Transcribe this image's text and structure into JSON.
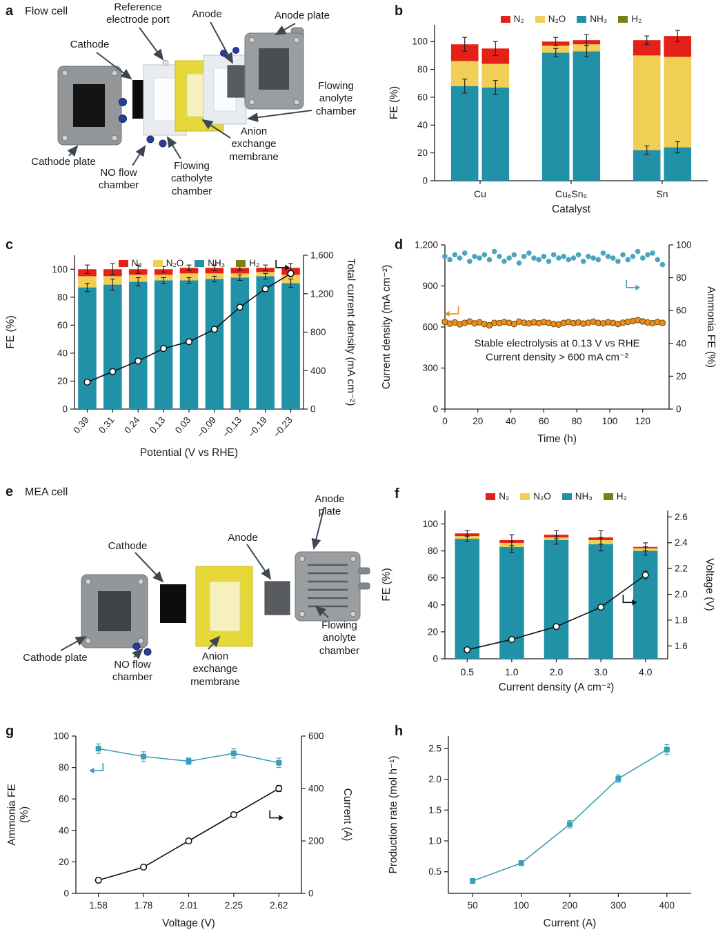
{
  "colors": {
    "n2": "#e32119",
    "n2o": "#f0cf54",
    "nh3": "#2191a8",
    "h2": "#7c7f15",
    "teal_marker": "#4aa5bd",
    "teal_line": "#3a9fb6",
    "orange": "#ef8c1f",
    "axis": "#1a1a1a",
    "arrow": "#3d4754"
  },
  "panel_a": {
    "letter": "a",
    "title": "Flow cell",
    "labels": {
      "cathode": "Cathode",
      "ref_port": "Reference\nelectrode port",
      "anode": "Anode",
      "anode_plate": "Anode plate",
      "flowing_anolyte": "Flowing\nanolyte\nchamber",
      "aem": "Anion\nexchange\nmembrane",
      "cathode_plate": "Cathode plate",
      "no_flow": "NO flow\nchamber",
      "flowing_catholyte": "Flowing\ncatholyte\nchamber"
    }
  },
  "panel_b": {
    "letter": "b"
  },
  "panel_c": {
    "letter": "c"
  },
  "panel_d": {
    "letter": "d"
  },
  "panel_e": {
    "letter": "e",
    "title": "MEA cell",
    "labels": {
      "cathode": "Cathode",
      "anode": "Anode",
      "anode_plate": "Anode plate",
      "flowing_anolyte": "Flowing\nanolyte\nchamber",
      "aem": "Anion\nexchange\nmembrane",
      "cathode_plate": "Cathode plate",
      "no_flow": "NO flow\nchamber"
    }
  },
  "panel_f": {
    "letter": "f"
  },
  "panel_g": {
    "letter": "g"
  },
  "panel_h": {
    "letter": "h"
  },
  "chart_data": [
    {
      "panel": "b",
      "type": "stacked_bar",
      "ylabel": "FE (%)",
      "ylim": [
        0,
        112
      ],
      "yticks": [
        0,
        20,
        40,
        60,
        80,
        100
      ],
      "xlabel": "Catalyst",
      "legend": [
        {
          "key": "N2",
          "label": "N₂",
          "color": "#e32119"
        },
        {
          "key": "N2O",
          "label": "N₂O",
          "color": "#f0cf54"
        },
        {
          "key": "NH3",
          "label": "NH₃",
          "color": "#2191a8"
        },
        {
          "key": "H2",
          "label": "H₂",
          "color": "#7c7f15"
        }
      ],
      "stack_order": [
        "NH3",
        "N2O",
        "N2",
        "H2"
      ],
      "groups": [
        {
          "label": "Cu",
          "bars": [
            {
              "segs": {
                "NH3": 68,
                "N2O": 18,
                "N2": 12,
                "H2": 0
              },
              "err": 5
            },
            {
              "segs": {
                "NH3": 67,
                "N2O": 17,
                "N2": 11,
                "H2": 0
              },
              "err": 5
            }
          ]
        },
        {
          "label": "Cu₆Sn₅",
          "bars": [
            {
              "segs": {
                "NH3": 92,
                "N2O": 5,
                "N2": 3,
                "H2": 0
              },
              "err": 3
            },
            {
              "segs": {
                "NH3": 93,
                "N2O": 5,
                "N2": 3,
                "H2": 0
              },
              "err": 4
            }
          ]
        },
        {
          "label": "Sn",
          "bars": [
            {
              "segs": {
                "NH3": 22,
                "N2O": 68,
                "N2": 11,
                "H2": 0
              },
              "err": 3
            },
            {
              "segs": {
                "NH3": 24,
                "N2O": 65,
                "N2": 15,
                "H2": 0
              },
              "err": 4
            }
          ]
        }
      ]
    },
    {
      "panel": "c",
      "type": "stacked_bar",
      "ylabel": "FE (%)",
      "ylim": [
        0,
        110
      ],
      "yticks": [
        0,
        20,
        40,
        60,
        80,
        100
      ],
      "xlabel": "Potential (V vs RHE)",
      "right_axis": {
        "label": "Total current density (mA cm⁻²)",
        "lim": [
          0,
          1600
        ],
        "ticks": [
          0,
          400,
          800,
          1200,
          1600
        ],
        "tick_labels": [
          "0",
          "400",
          "800",
          "1,200",
          "1,600"
        ]
      },
      "legend": [
        {
          "key": "N2",
          "label": "N₂",
          "color": "#e32119"
        },
        {
          "key": "N2O",
          "label": "N₂O",
          "color": "#f0cf54"
        },
        {
          "key": "NH3",
          "label": "NH₃",
          "color": "#2191a8"
        },
        {
          "key": "H2",
          "label": "H₂",
          "color": "#7c7f15"
        }
      ],
      "stack_order": [
        "NH3",
        "N2O",
        "N2",
        "H2"
      ],
      "bar_frac": 0.72,
      "groups": [
        {
          "label": "0.39",
          "bars": [
            {
              "segs": {
                "NH3": 87,
                "N2O": 8,
                "N2": 5
              },
              "err": 3
            }
          ]
        },
        {
          "label": "0.31",
          "bars": [
            {
              "segs": {
                "NH3": 89,
                "N2O": 6,
                "N2": 5
              },
              "err": 4
            }
          ]
        },
        {
          "label": "0.24",
          "bars": [
            {
              "segs": {
                "NH3": 91,
                "N2O": 5,
                "N2": 4
              },
              "err": 3
            }
          ]
        },
        {
          "label": "0.13",
          "bars": [
            {
              "segs": {
                "NH3": 92,
                "N2O": 4,
                "N2": 4
              },
              "err": 2
            }
          ]
        },
        {
          "label": "0.03",
          "bars": [
            {
              "segs": {
                "NH3": 92,
                "N2O": 5,
                "N2": 4
              },
              "err": 2
            }
          ]
        },
        {
          "label": "−0.09",
          "bars": [
            {
              "segs": {
                "NH3": 93,
                "N2O": 4,
                "N2": 4
              },
              "err": 2
            }
          ]
        },
        {
          "label": "−0.13",
          "bars": [
            {
              "segs": {
                "NH3": 94,
                "N2O": 3,
                "N2": 4
              },
              "err": 2
            }
          ]
        },
        {
          "label": "−0.19",
          "bars": [
            {
              "segs": {
                "NH3": 95,
                "N2O": 3,
                "N2": 3
              },
              "err": 2
            }
          ]
        },
        {
          "label": "−0.23",
          "bars": [
            {
              "segs": {
                "NH3": 90,
                "N2O": 6,
                "N2": 5
              },
              "err": 3
            }
          ]
        }
      ],
      "overlay": {
        "axis": "right",
        "color": "#111111",
        "marker": "open-circle",
        "values": [
          280,
          390,
          500,
          630,
          700,
          830,
          1060,
          1250,
          1410
        ],
        "err": [
          20,
          20,
          20,
          25,
          25,
          25,
          30,
          30,
          35
        ]
      },
      "ann": [
        {
          "t": "elbow",
          "fx": 0.88,
          "fy": 0.08,
          "dir": "right",
          "color": "#111111"
        }
      ]
    },
    {
      "panel": "d",
      "type": "scatter",
      "xlabel": "Time (h)",
      "xlim": [
        0,
        136
      ],
      "xticks": [
        0,
        20,
        40,
        60,
        80,
        100,
        120
      ],
      "ylabel": "Current density (mA cm⁻²)",
      "ylim": [
        0,
        1200
      ],
      "yticks": [
        0,
        300,
        600,
        900,
        1200
      ],
      "ytick_labels": [
        "0",
        "300",
        "600",
        "900",
        "1,200"
      ],
      "right_axis": {
        "label": "Ammonia FE (%)",
        "lim": [
          0,
          100
        ],
        "ticks": [
          0,
          20,
          40,
          60,
          80,
          100
        ]
      },
      "series": [
        {
          "name": "Ammonia FE",
          "axis": "right",
          "marker": "dot",
          "color": "#4aa5bd",
          "x": [
            0,
            3,
            6,
            9,
            12,
            15,
            18,
            21,
            24,
            27,
            30,
            33,
            36,
            39,
            42,
            45,
            48,
            51,
            54,
            57,
            60,
            63,
            66,
            69,
            72,
            75,
            78,
            81,
            84,
            87,
            90,
            93,
            96,
            99,
            102,
            105,
            108,
            111,
            114,
            117,
            120,
            123,
            126,
            129,
            132
          ],
          "y": [
            93,
            91,
            94,
            92,
            95,
            90,
            93,
            92,
            94,
            91,
            96,
            93,
            90,
            92,
            94,
            89,
            93,
            95,
            92,
            91,
            93,
            90,
            94,
            92,
            93,
            91,
            92,
            94,
            90,
            93,
            92,
            91,
            95,
            93,
            92,
            90,
            94,
            91,
            93,
            96,
            92,
            94,
            95,
            91,
            88
          ]
        },
        {
          "name": "Current density",
          "axis": "left",
          "marker": "ring",
          "color": "#ef8c1f",
          "edge": "#6b4a07",
          "x": [
            0,
            3,
            6,
            9,
            12,
            15,
            18,
            21,
            24,
            27,
            30,
            33,
            36,
            39,
            42,
            45,
            48,
            51,
            54,
            57,
            60,
            63,
            66,
            69,
            72,
            75,
            78,
            81,
            84,
            87,
            90,
            93,
            96,
            99,
            102,
            105,
            108,
            111,
            114,
            117,
            120,
            123,
            126,
            129,
            132
          ],
          "y": [
            638,
            625,
            633,
            620,
            630,
            640,
            626,
            634,
            621,
            612,
            630,
            628,
            636,
            630,
            622,
            639,
            631,
            626,
            634,
            628,
            636,
            630,
            622,
            618,
            630,
            636,
            628,
            633,
            625,
            631,
            639,
            630,
            626,
            635,
            629,
            622,
            631,
            638,
            643,
            650,
            641,
            633,
            628,
            636,
            630
          ]
        }
      ],
      "ann": [
        {
          "t": "text",
          "fx": 0.5,
          "fy": 0.62,
          "fs": 15,
          "lines": [
            "Stable electrolysis at 0.13 V vs RHE",
            "Current density > 600 mA cm⁻²"
          ]
        },
        {
          "t": "elbow",
          "fx": 0.06,
          "fy": 0.42,
          "dir": "left",
          "color": "#ef8c1f"
        },
        {
          "t": "elbow",
          "fx": 0.81,
          "fy": 0.26,
          "dir": "right",
          "color": "#4aa5bd"
        }
      ]
    },
    {
      "panel": "f",
      "type": "stacked_bar",
      "ylabel": "FE (%)",
      "ylim": [
        0,
        110
      ],
      "yticks": [
        0,
        20,
        40,
        60,
        80,
        100
      ],
      "xlabel": "Current density (A cm⁻²)",
      "right_axis": {
        "label": "Voltage (V)",
        "lim": [
          1.5,
          2.65
        ],
        "ticks": [
          1.6,
          1.8,
          2.0,
          2.2,
          2.4,
          2.6
        ],
        "tick_labels": [
          "1.6",
          "1.8",
          "2.0",
          "2.2",
          "2.4",
          "2.6"
        ]
      },
      "legend": [
        {
          "key": "N2",
          "label": "N₂",
          "color": "#e32119"
        },
        {
          "key": "N2O",
          "label": "N₂O",
          "color": "#f0cf54"
        },
        {
          "key": "NH3",
          "label": "NH₃",
          "color": "#2191a8"
        },
        {
          "key": "H2",
          "label": "H₂",
          "color": "#7c7f15"
        }
      ],
      "stack_order": [
        "NH3",
        "N2O",
        "N2",
        "H2"
      ],
      "bar_frac": 0.55,
      "groups": [
        {
          "label": "0.5",
          "bars": [
            {
              "segs": {
                "NH3": 89,
                "N2O": 2,
                "N2": 2
              },
              "err": 2
            }
          ]
        },
        {
          "label": "1.0",
          "bars": [
            {
              "segs": {
                "NH3": 83,
                "N2O": 3,
                "N2": 2
              },
              "err": 4
            }
          ]
        },
        {
          "label": "2.0",
          "bars": [
            {
              "segs": {
                "NH3": 88,
                "N2O": 2,
                "N2": 2
              },
              "err": 3
            }
          ]
        },
        {
          "label": "3.0",
          "bars": [
            {
              "segs": {
                "NH3": 85,
                "N2O": 3,
                "N2": 2
              },
              "err": 5
            }
          ]
        },
        {
          "label": "4.0",
          "bars": [
            {
              "segs": {
                "NH3": 80,
                "N2O": 2,
                "N2": 1
              },
              "err": 3
            }
          ]
        }
      ],
      "overlay": {
        "axis": "right",
        "color": "#111111",
        "marker": "open-circle",
        "values": [
          1.57,
          1.65,
          1.75,
          1.9,
          2.15
        ],
        "err": [
          0.01,
          0.01,
          0.02,
          0.02,
          0.03
        ]
      },
      "ann": [
        {
          "t": "elbow",
          "fx": 0.8,
          "fy": 0.62,
          "dir": "right",
          "color": "#111111"
        }
      ]
    },
    {
      "panel": "g",
      "type": "line",
      "categories": [
        "1.58",
        "1.78",
        "2.01",
        "2.25",
        "2.62"
      ],
      "xlabel": "Voltage (V)",
      "ylabel": "Ammonia FE\n(%)",
      "ylim": [
        0,
        100
      ],
      "yticks": [
        0,
        20,
        40,
        60,
        80,
        100
      ],
      "right_axis": {
        "label": "Current (A)",
        "lim": [
          0,
          600
        ],
        "ticks": [
          0,
          200,
          400,
          600
        ]
      },
      "series": [
        {
          "name": "Ammonia FE",
          "axis": "left",
          "marker": "square",
          "color": "#3a9fb6",
          "values": [
            92,
            87,
            84,
            89,
            83
          ],
          "err": [
            3,
            3,
            2,
            3,
            3
          ]
        },
        {
          "name": "Current",
          "axis": "right",
          "marker": "open-circle",
          "color": "#111111",
          "values": [
            50,
            100,
            200,
            300,
            400
          ],
          "err": [
            10,
            8,
            8,
            8,
            12
          ]
        }
      ],
      "ann": [
        {
          "t": "elbow",
          "fx": 0.12,
          "fy": 0.22,
          "dir": "left",
          "color": "#3a9fb6"
        },
        {
          "t": "elbow",
          "fx": 0.86,
          "fy": 0.52,
          "dir": "right",
          "color": "#111111"
        }
      ]
    },
    {
      "panel": "h",
      "type": "line",
      "categories": [
        "50",
        "100",
        "200",
        "300",
        "400"
      ],
      "xlabel": "Current (A)",
      "ylabel": "Production rate (mol h⁻¹)",
      "ylim": [
        0.15,
        2.7
      ],
      "yticks": [
        0.5,
        1.0,
        1.5,
        2.0,
        2.5
      ],
      "ytick_labels": [
        "0.5",
        "1.0",
        "1.5",
        "2.0",
        "2.5"
      ],
      "series": [
        {
          "name": "Production rate",
          "axis": "left",
          "marker": "square",
          "color": "#3a9fb6",
          "values": [
            0.35,
            0.64,
            1.27,
            2.01,
            2.48
          ],
          "err": [
            0.04,
            0.04,
            0.06,
            0.06,
            0.08
          ]
        }
      ]
    }
  ]
}
